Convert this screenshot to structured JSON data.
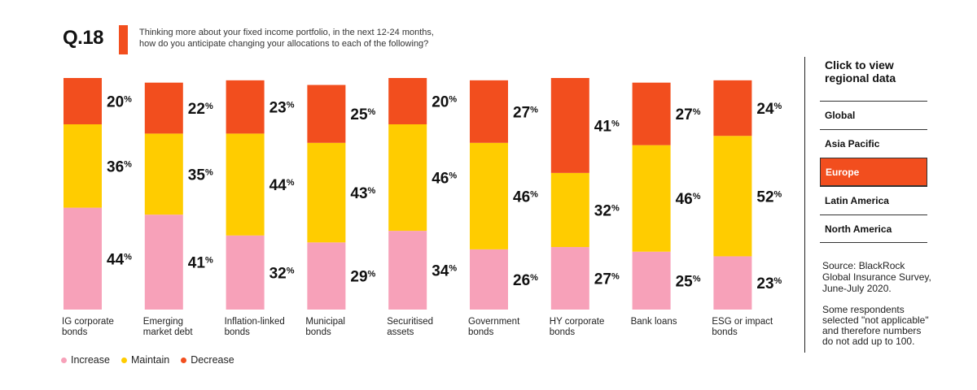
{
  "question": {
    "number": "Q.18",
    "text_line1": "Thinking more about your fixed income portfolio, in the next 12-24 months,",
    "text_line2": "how do you anticipate changing your allocations to each of the following?"
  },
  "legend": {
    "increase": "Increase",
    "maintain": "Maintain",
    "decrease": "Decrease"
  },
  "panel": {
    "title_line1": "Click to view",
    "title_line2": "regional data",
    "regions": [
      "Global",
      "Asia Pacific",
      "Europe",
      "Latin America",
      "North America"
    ],
    "selected": "Europe",
    "source": "Source: BlackRock Global Insurance Survey, June-July 2020.",
    "note": "Some respondents selected \"not applicable\" and therefore numbers do not add up to 100."
  },
  "colors": {
    "increase": "#f7a1b9",
    "maintain": "#ffcc00",
    "decrease": "#f24e1e",
    "accent": "#f24e1e"
  },
  "chart_data": {
    "type": "bar",
    "stacked": true,
    "categories": [
      [
        "IG corporate",
        "bonds"
      ],
      [
        "Emerging",
        "market debt"
      ],
      [
        "Inflation-linked",
        "bonds"
      ],
      [
        "Municipal",
        "bonds"
      ],
      [
        "Securitised",
        "assets"
      ],
      [
        "Government",
        "bonds"
      ],
      [
        "HY corporate",
        "bonds"
      ],
      [
        "Bank loans"
      ],
      [
        "ESG or impact",
        "bonds"
      ]
    ],
    "series": [
      {
        "name": "Increase",
        "values": [
          44,
          41,
          32,
          29,
          34,
          26,
          27,
          25,
          23
        ]
      },
      {
        "name": "Maintain",
        "values": [
          36,
          35,
          44,
          43,
          46,
          46,
          32,
          46,
          52
        ]
      },
      {
        "name": "Decrease",
        "values": [
          20,
          22,
          23,
          25,
          20,
          27,
          41,
          27,
          24
        ]
      }
    ],
    "value_suffix": "%",
    "legend_position": "bottom-left",
    "grid": false
  }
}
